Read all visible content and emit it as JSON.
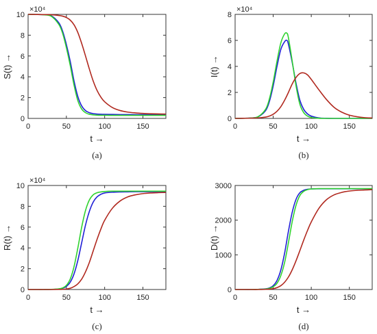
{
  "colors": {
    "axis": "#333333",
    "background": "#ffffff"
  },
  "chart_data": [
    {
      "type": "line",
      "panel": "a",
      "caption": "(a)",
      "xlabel": "t →",
      "ylabel": "S(t) →",
      "xlim": [
        0,
        180
      ],
      "ylim": [
        0,
        100000
      ],
      "x_ticks": [
        0,
        50,
        100,
        150
      ],
      "x_tick_labels": [
        "0",
        "50",
        "100",
        "150"
      ],
      "y_ticks": [
        0,
        20000,
        40000,
        60000,
        80000,
        100000
      ],
      "y_tick_labels": [
        "0",
        "2",
        "4",
        "6",
        "8",
        "10"
      ],
      "exponent_label": "×10⁴",
      "grid": false,
      "x": [
        0,
        10,
        20,
        30,
        40,
        45,
        50,
        55,
        60,
        65,
        70,
        75,
        80,
        85,
        90,
        95,
        100,
        110,
        120,
        130,
        140,
        150,
        160,
        170,
        180
      ],
      "series": [
        {
          "color": "#1f1fd6",
          "values": [
            100000,
            99900,
            99700,
            98700,
            92000,
            84000,
            71000,
            55000,
            36000,
            21000,
            12000,
            7500,
            5500,
            4600,
            4200,
            4000,
            3900,
            3800,
            3700,
            3700,
            3600,
            3600,
            3600,
            3600,
            3600
          ]
        },
        {
          "color": "#2fd22f",
          "values": [
            100000,
            99900,
            99600,
            98300,
            90500,
            82000,
            68000,
            51000,
            32000,
            17000,
            9000,
            5500,
            4000,
            3400,
            3100,
            3000,
            3000,
            2900,
            2900,
            2900,
            2900,
            2900,
            2900,
            2900,
            2900
          ]
        },
        {
          "color": "#b0281e",
          "values": [
            100000,
            99900,
            99800,
            99600,
            99000,
            98300,
            97000,
            94500,
            90000,
            82500,
            72000,
            60000,
            47500,
            36000,
            27000,
            20500,
            16000,
            10500,
            7600,
            6100,
            5300,
            4800,
            4500,
            4300,
            4200
          ]
        }
      ]
    },
    {
      "type": "line",
      "panel": "b",
      "caption": "(b)",
      "xlabel": "t →",
      "ylabel": "I(t) →",
      "xlim": [
        0,
        180
      ],
      "ylim": [
        0,
        80000
      ],
      "x_ticks": [
        0,
        50,
        100,
        150
      ],
      "x_tick_labels": [
        "0",
        "50",
        "100",
        "150"
      ],
      "y_ticks": [
        0,
        20000,
        40000,
        60000,
        80000
      ],
      "y_tick_labels": [
        "0",
        "2",
        "4",
        "6",
        "8"
      ],
      "exponent_label": "×10⁴",
      "grid": false,
      "x": [
        0,
        10,
        20,
        30,
        40,
        45,
        50,
        55,
        60,
        65,
        68,
        70,
        75,
        80,
        85,
        90,
        95,
        100,
        110,
        120,
        130,
        140,
        150,
        160,
        170,
        180
      ],
      "series": [
        {
          "color": "#1f1fd6",
          "values": [
            0,
            100,
            300,
            1200,
            6000,
            13000,
            25000,
            40000,
            53000,
            59000,
            60000,
            57000,
            43000,
            27000,
            14000,
            7000,
            3500,
            1800,
            400,
            100,
            0,
            0,
            0,
            0,
            0,
            0
          ]
        },
        {
          "color": "#2fd22f",
          "values": [
            0,
            100,
            300,
            1300,
            7000,
            15000,
            28000,
            44000,
            58000,
            65000,
            65500,
            62000,
            44000,
            25000,
            11000,
            4500,
            1800,
            700,
            100,
            0,
            0,
            0,
            0,
            0,
            0,
            0
          ]
        },
        {
          "color": "#b0281e",
          "values": [
            0,
            100,
            200,
            400,
            1000,
            1800,
            3200,
            5500,
            9000,
            14000,
            17500,
            20000,
            26500,
            31500,
            34500,
            35000,
            33500,
            30000,
            22000,
            14500,
            8500,
            4800,
            2500,
            1300,
            600,
            300
          ]
        }
      ]
    },
    {
      "type": "line",
      "panel": "c",
      "caption": "(c)",
      "xlabel": "t →",
      "ylabel": "R(t) →",
      "xlim": [
        0,
        180
      ],
      "ylim": [
        0,
        100000
      ],
      "x_ticks": [
        0,
        50,
        100,
        150
      ],
      "x_tick_labels": [
        "0",
        "50",
        "100",
        "150"
      ],
      "y_ticks": [
        0,
        20000,
        40000,
        60000,
        80000,
        100000
      ],
      "y_tick_labels": [
        "0",
        "2",
        "4",
        "6",
        "8",
        "10"
      ],
      "exponent_label": "×10⁴",
      "grid": false,
      "x": [
        0,
        10,
        20,
        30,
        40,
        45,
        50,
        55,
        60,
        65,
        70,
        75,
        80,
        85,
        90,
        95,
        100,
        110,
        120,
        130,
        140,
        150,
        160,
        170,
        180
      ],
      "series": [
        {
          "color": "#1f1fd6",
          "values": [
            0,
            0,
            0,
            100,
            500,
            1200,
            3000,
            7000,
            15000,
            28000,
            45000,
            62000,
            75000,
            84000,
            89000,
            91500,
            92800,
            93500,
            93800,
            93900,
            94000,
            94000,
            94000,
            94000,
            94000
          ]
        },
        {
          "color": "#2fd22f",
          "values": [
            0,
            0,
            0,
            100,
            600,
            1500,
            4000,
            10000,
            22000,
            40000,
            60000,
            76000,
            86000,
            91000,
            93000,
            93800,
            94200,
            94500,
            94500,
            94500,
            94500,
            94500,
            94500,
            94500,
            94500
          ]
        },
        {
          "color": "#b0281e",
          "values": [
            0,
            0,
            0,
            0,
            100,
            200,
            500,
            1200,
            2800,
            5500,
            10000,
            17000,
            26000,
            37000,
            48000,
            58000,
            66500,
            78000,
            85000,
            89000,
            91000,
            92200,
            92800,
            93100,
            93300
          ]
        }
      ]
    },
    {
      "type": "line",
      "panel": "d",
      "caption": "(d)",
      "xlabel": "t →",
      "ylabel": "D(t) →",
      "xlim": [
        0,
        180
      ],
      "ylim": [
        0,
        3000
      ],
      "x_ticks": [
        0,
        50,
        100,
        150
      ],
      "x_tick_labels": [
        "0",
        "50",
        "100",
        "150"
      ],
      "y_ticks": [
        0,
        1000,
        2000,
        3000
      ],
      "y_tick_labels": [
        "0",
        "1000",
        "2000",
        "3000"
      ],
      "exponent_label": "",
      "grid": false,
      "x": [
        0,
        10,
        20,
        30,
        40,
        45,
        50,
        55,
        60,
        65,
        70,
        75,
        80,
        85,
        90,
        95,
        100,
        110,
        120,
        130,
        140,
        150,
        160,
        170,
        180
      ],
      "series": [
        {
          "color": "#1f1fd6",
          "values": [
            0,
            0,
            0,
            5,
            20,
            45,
            110,
            260,
            560,
            1050,
            1680,
            2230,
            2600,
            2790,
            2860,
            2890,
            2900,
            2905,
            2905,
            2905,
            2905,
            2905,
            2905,
            2905,
            2905
          ]
        },
        {
          "color": "#2fd22f",
          "values": [
            0,
            0,
            0,
            3,
            15,
            35,
            80,
            180,
            400,
            780,
            1350,
            1960,
            2430,
            2710,
            2830,
            2880,
            2900,
            2910,
            2910,
            2910,
            2910,
            2910,
            2910,
            2910,
            2910
          ]
        },
        {
          "color": "#b0281e",
          "values": [
            0,
            0,
            0,
            0,
            5,
            12,
            25,
            55,
            110,
            210,
            360,
            570,
            830,
            1120,
            1420,
            1700,
            1950,
            2340,
            2590,
            2730,
            2800,
            2840,
            2860,
            2870,
            2880
          ]
        }
      ]
    }
  ]
}
